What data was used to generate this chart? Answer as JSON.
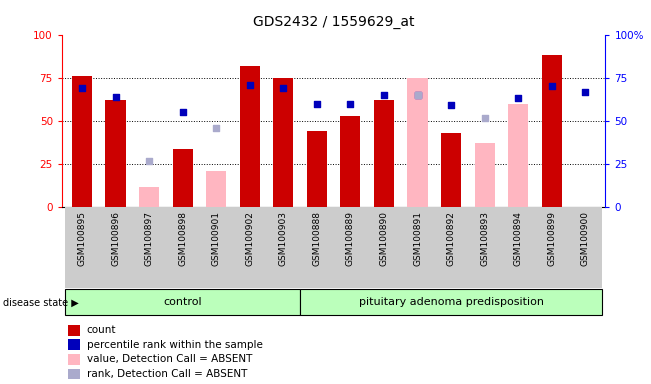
{
  "title": "GDS2432 / 1559629_at",
  "samples": [
    "GSM100895",
    "GSM100896",
    "GSM100897",
    "GSM100898",
    "GSM100901",
    "GSM100902",
    "GSM100903",
    "GSM100888",
    "GSM100889",
    "GSM100890",
    "GSM100891",
    "GSM100892",
    "GSM100893",
    "GSM100894",
    "GSM100899",
    "GSM100900"
  ],
  "count": [
    76,
    62,
    null,
    34,
    null,
    82,
    75,
    44,
    53,
    62,
    null,
    43,
    null,
    null,
    88,
    null
  ],
  "percentile": [
    69,
    64,
    null,
    55,
    null,
    71,
    69,
    60,
    60,
    65,
    65,
    59,
    null,
    63,
    70,
    67
  ],
  "absent_value": [
    null,
    null,
    12,
    null,
    21,
    null,
    null,
    null,
    null,
    null,
    75,
    null,
    37,
    60,
    null,
    null
  ],
  "absent_rank": [
    null,
    null,
    27,
    null,
    46,
    null,
    null,
    null,
    null,
    null,
    65,
    null,
    52,
    null,
    null,
    null
  ],
  "control_indices": [
    0,
    1,
    2,
    3,
    4,
    5,
    6
  ],
  "pituitary_indices": [
    7,
    8,
    9,
    10,
    11,
    12,
    13,
    14,
    15
  ],
  "group_labels": [
    "control",
    "pituitary adenoma predisposition"
  ],
  "bar_color_red": "#CC0000",
  "bar_color_pink": "#FFB6C1",
  "dot_color_blue": "#0000BB",
  "dot_color_lightblue": "#AAAACC",
  "ylim": [
    0,
    100
  ],
  "yticks": [
    0,
    25,
    50,
    75,
    100
  ],
  "legend_labels": [
    "count",
    "percentile rank within the sample",
    "value, Detection Call = ABSENT",
    "rank, Detection Call = ABSENT"
  ],
  "disease_state_label": "disease state",
  "group_bg_color": "#BBFFBB",
  "xtick_bg_color": "#CCCCCC"
}
